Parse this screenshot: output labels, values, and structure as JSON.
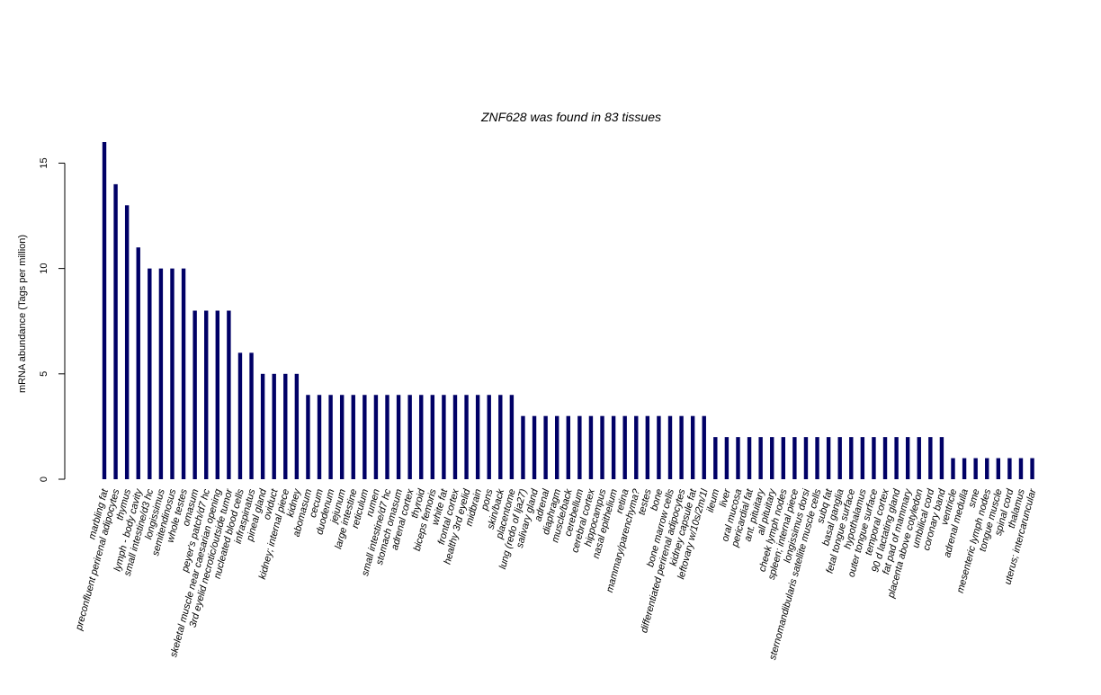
{
  "chart_data": {
    "type": "bar",
    "title": "ZNF628  was found in  83  tissues",
    "xlabel": "",
    "ylabel": "mRNA abundance (Tags per million)",
    "ylim": [
      0,
      16
    ],
    "yticks": [
      0,
      5,
      10,
      15
    ],
    "grid": false,
    "legend": "none",
    "bar_color": "#000066",
    "categories": [
      "marbling fat",
      "preconfluent perirenal adipocytes",
      "thymus",
      "lymph - body cavity",
      "small intestine/d3 hc",
      "longissimus",
      "semitendinosus",
      "whole testes",
      "omasum",
      "peyer's patch/d7 hc",
      "skeletal muscle near caesarian opening",
      "3rd eyelid necrotic/outside tumor",
      "nucleated blood cells",
      "infraspinatus",
      "pineal gland",
      "oviduct",
      "kidney; internal piece",
      "kidney",
      "abomasum",
      "cecum",
      "duodenum",
      "jejunum",
      "large intestine",
      "reticulum",
      "rumen",
      "small intestine/d7 hc",
      "stomach omasum",
      "adrenal cortex",
      "thyroid",
      "biceps femoris",
      "white fat",
      "frontal cortex",
      "healthy 3rd eyelid",
      "midbrain",
      "pons",
      "skin/back",
      "placentome",
      "lung (redo of lja27)",
      "salivary gland",
      "adrenal",
      "diaphragm",
      "muscle/back",
      "cerebellum",
      "cerebral cortex",
      "hippocampus",
      "nasal epithelium",
      "retina",
      "mammary/parenchyma?",
      "testes",
      "bone",
      "bone marrow cells",
      "differentiated perirenal adipocytes",
      "kidney capsule fat",
      "leftovary w/10s/2m/1l",
      "ileum",
      "liver",
      "oral mucosa",
      "pericardial fat",
      "ant. pituitary",
      "all pituitary",
      "cheek lymph nodes",
      "spleen; internal piece",
      "longissimus dorsi",
      "sternomandibularis satellite muscle cells",
      "subq fat",
      "basal ganglia",
      "fetal tongue surface",
      "hypothalamus",
      "outer tongue surface",
      "temporal cortex",
      "90 d lactating gland",
      "fat pad of mammary",
      "placenta above cotyledon",
      "umbilical cord",
      "coronary band",
      "ventricle",
      "adrenal medulla",
      "sme",
      "mesenteric lymph nodes",
      "tongue muscle",
      "spinal cord",
      "thalamus",
      "uterus; intercaruncular"
    ],
    "values": [
      16,
      14,
      13,
      11,
      10,
      10,
      10,
      10,
      8,
      8,
      8,
      8,
      6,
      6,
      5,
      5,
      5,
      5,
      4,
      4,
      4,
      4,
      4,
      4,
      4,
      4,
      4,
      4,
      4,
      4,
      4,
      4,
      4,
      4,
      4,
      4,
      4,
      3,
      3,
      3,
      3,
      3,
      3,
      3,
      3,
      3,
      3,
      3,
      3,
      3,
      3,
      3,
      3,
      3,
      2,
      2,
      2,
      2,
      2,
      2,
      2,
      2,
      2,
      2,
      2,
      2,
      2,
      2,
      2,
      2,
      2,
      2,
      2,
      2,
      2,
      1,
      1,
      1,
      1,
      1,
      1,
      1,
      1
    ]
  }
}
